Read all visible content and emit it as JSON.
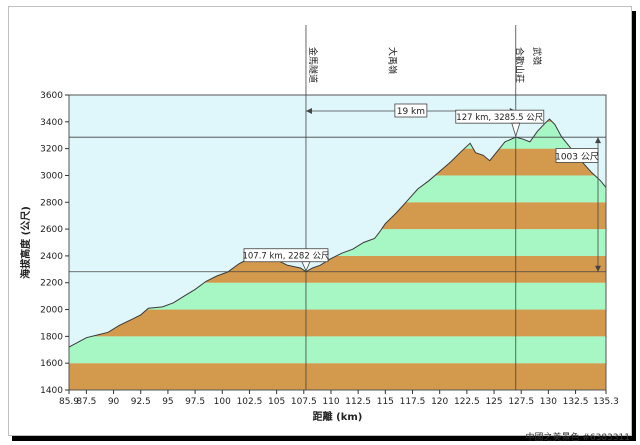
{
  "watermark": "中國之美景色 #6383311",
  "chart_data": {
    "type": "area",
    "title": "",
    "xlabel": "距離 (km)",
    "ylabel": "海拔高度 (公尺)",
    "xlim": [
      85.9,
      135.3
    ],
    "ylim": [
      1400,
      3600
    ],
    "yticks": [
      1400,
      1600,
      1800,
      2000,
      2200,
      2400,
      2600,
      2800,
      3000,
      3200,
      3400,
      3600
    ],
    "xticks": [
      "85.9",
      "87.5",
      "90",
      "92.5",
      "95",
      "97.5",
      "100",
      "102.5",
      "105",
      "107.5",
      "110",
      "112.5",
      "115",
      "117.5",
      "120",
      "122.5",
      "125",
      "127.5",
      "130",
      "132.5",
      "135.3"
    ],
    "xtick_values": [
      85.9,
      87.5,
      90,
      92.5,
      95,
      97.5,
      100,
      102.5,
      105,
      107.5,
      110,
      112.5,
      115,
      117.5,
      120,
      122.5,
      125,
      127.5,
      130,
      132.5,
      135.3
    ],
    "band_colors": [
      "#d39a4e",
      "#a6f7c4"
    ],
    "sky_color": "#dff6fb",
    "x": [
      85.9,
      87.5,
      88.5,
      89.5,
      90.5,
      91.5,
      92.5,
      93.2,
      94.5,
      95.5,
      96.5,
      97.5,
      98.5,
      99.5,
      100.5,
      101.5,
      102.2,
      103.5,
      105.0,
      106.0,
      107.2,
      107.7,
      108.3,
      109.0,
      110.0,
      111.0,
      112.0,
      113.0,
      114.0,
      114.4,
      115.0,
      116.0,
      117.0,
      118.0,
      119.0,
      120.0,
      121.0,
      122.0,
      122.8,
      123.3,
      124.0,
      124.6,
      125.3,
      126.0,
      127.0,
      127.7,
      128.3,
      129.0,
      129.7,
      130.1,
      130.6,
      131.2,
      132.0,
      133.0,
      134.0,
      134.8,
      135.3
    ],
    "y": [
      1720,
      1790,
      1810,
      1830,
      1880,
      1920,
      1960,
      2010,
      2020,
      2050,
      2100,
      2150,
      2210,
      2250,
      2280,
      2340,
      2370,
      2390,
      2370,
      2330,
      2310,
      2282,
      2310,
      2330,
      2380,
      2420,
      2450,
      2500,
      2530,
      2570,
      2640,
      2720,
      2810,
      2900,
      2960,
      3030,
      3100,
      3180,
      3240,
      3170,
      3150,
      3110,
      3180,
      3250,
      3285.5,
      3270,
      3250,
      3330,
      3390,
      3420,
      3380,
      3290,
      3210,
      3110,
      3020,
      2960,
      2910
    ],
    "annotations": [
      {
        "text": "107.7 km, 2282 公尺",
        "x": 107.7,
        "y": 2282
      },
      {
        "text": "127 km, 3285.5 公尺",
        "x": 127,
        "y": 3285.5
      }
    ],
    "distance_label": "19 km",
    "elevation_diff_label": "1003 公尺",
    "markers": [
      {
        "label": "金馬隧道",
        "x": 107.7
      },
      {
        "label": "大禹嶺",
        "x": 115
      },
      {
        "label": "武嶺",
        "x": 128.3
      },
      {
        "label": "合歡山莊",
        "x": 126.7
      }
    ],
    "reference_lines_y": [
      2282,
      3285.5
    ],
    "reference_lines_x": [
      107.7,
      127
    ]
  }
}
